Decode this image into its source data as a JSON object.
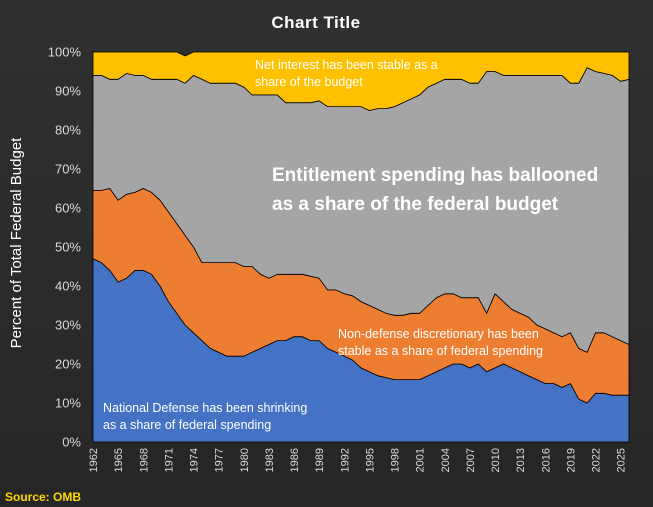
{
  "chart_data": {
    "type": "area",
    "stacked": true,
    "title": "Chart  Title",
    "ylabel": "Percent of Total Federal Budget",
    "xlabel": "",
    "ylim": [
      0,
      1
    ],
    "x_ticks": [
      "1962",
      "1965",
      "1968",
      "1971",
      "1974",
      "1977",
      "1980",
      "1983",
      "1986",
      "1989",
      "1992",
      "1995",
      "1998",
      "2001",
      "2004",
      "2007",
      "2010",
      "2013",
      "2016",
      "2019",
      "2022",
      "2025"
    ],
    "y_ticks": [
      "0%",
      "10%",
      "20%",
      "30%",
      "40%",
      "50%",
      "60%",
      "70%",
      "80%",
      "90%",
      "100%"
    ],
    "x": [
      1962,
      1963,
      1964,
      1965,
      1966,
      1967,
      1968,
      1969,
      1970,
      1971,
      1972,
      1973,
      1974,
      1975,
      1976,
      1977,
      1978,
      1979,
      1980,
      1981,
      1982,
      1983,
      1984,
      1985,
      1986,
      1987,
      1988,
      1989,
      1990,
      1991,
      1992,
      1993,
      1994,
      1995,
      1996,
      1997,
      1998,
      1999,
      2000,
      2001,
      2002,
      2003,
      2004,
      2005,
      2006,
      2007,
      2008,
      2009,
      2010,
      2011,
      2012,
      2013,
      2014,
      2015,
      2016,
      2017,
      2018,
      2019,
      2020,
      2021,
      2022,
      2023,
      2024,
      2025,
      2026
    ],
    "series": [
      {
        "id": "defense",
        "color": "#4472c4",
        "values": [
          0.47,
          0.46,
          0.44,
          0.41,
          0.42,
          0.44,
          0.44,
          0.43,
          0.4,
          0.36,
          0.33,
          0.3,
          0.28,
          0.26,
          0.24,
          0.23,
          0.22,
          0.22,
          0.22,
          0.23,
          0.24,
          0.25,
          0.26,
          0.26,
          0.27,
          0.27,
          0.26,
          0.26,
          0.24,
          0.23,
          0.22,
          0.21,
          0.19,
          0.18,
          0.17,
          0.165,
          0.16,
          0.16,
          0.16,
          0.16,
          0.17,
          0.18,
          0.19,
          0.2,
          0.2,
          0.19,
          0.2,
          0.18,
          0.19,
          0.2,
          0.19,
          0.18,
          0.17,
          0.16,
          0.15,
          0.15,
          0.14,
          0.15,
          0.11,
          0.1,
          0.125,
          0.125,
          0.12,
          0.12,
          0.12
        ]
      },
      {
        "id": "nondefense",
        "color": "#ed7d31",
        "values": [
          0.175,
          0.185,
          0.21,
          0.21,
          0.215,
          0.2,
          0.21,
          0.21,
          0.22,
          0.23,
          0.23,
          0.23,
          0.22,
          0.2,
          0.22,
          0.23,
          0.24,
          0.24,
          0.23,
          0.22,
          0.19,
          0.17,
          0.17,
          0.17,
          0.16,
          0.16,
          0.165,
          0.16,
          0.15,
          0.16,
          0.16,
          0.165,
          0.17,
          0.17,
          0.17,
          0.165,
          0.165,
          0.165,
          0.17,
          0.17,
          0.18,
          0.19,
          0.19,
          0.18,
          0.17,
          0.18,
          0.17,
          0.15,
          0.19,
          0.16,
          0.15,
          0.15,
          0.15,
          0.14,
          0.14,
          0.13,
          0.13,
          0.13,
          0.13,
          0.13,
          0.155,
          0.155,
          0.15,
          0.14,
          0.13
        ]
      },
      {
        "id": "entitlements",
        "color": "#a5a5a5",
        "values": [
          0.295,
          0.295,
          0.28,
          0.31,
          0.31,
          0.3,
          0.29,
          0.29,
          0.31,
          0.34,
          0.37,
          0.39,
          0.44,
          0.47,
          0.46,
          0.46,
          0.46,
          0.46,
          0.46,
          0.44,
          0.46,
          0.47,
          0.46,
          0.44,
          0.44,
          0.44,
          0.445,
          0.455,
          0.47,
          0.47,
          0.48,
          0.485,
          0.5,
          0.5,
          0.515,
          0.525,
          0.535,
          0.545,
          0.55,
          0.56,
          0.56,
          0.55,
          0.55,
          0.55,
          0.56,
          0.55,
          0.55,
          0.62,
          0.57,
          0.58,
          0.6,
          0.61,
          0.62,
          0.64,
          0.65,
          0.66,
          0.67,
          0.64,
          0.68,
          0.73,
          0.67,
          0.665,
          0.67,
          0.665,
          0.68
        ]
      },
      {
        "id": "interest",
        "color": "#ffc000",
        "values": [
          0.06,
          0.06,
          0.07,
          0.07,
          0.055,
          0.06,
          0.06,
          0.07,
          0.07,
          0.07,
          0.07,
          0.07,
          0.06,
          0.07,
          0.08,
          0.08,
          0.08,
          0.08,
          0.09,
          0.11,
          0.11,
          0.11,
          0.11,
          0.13,
          0.13,
          0.13,
          0.13,
          0.125,
          0.14,
          0.14,
          0.14,
          0.14,
          0.14,
          0.15,
          0.145,
          0.145,
          0.14,
          0.13,
          0.12,
          0.11,
          0.09,
          0.08,
          0.07,
          0.07,
          0.07,
          0.08,
          0.08,
          0.05,
          0.05,
          0.06,
          0.06,
          0.06,
          0.06,
          0.06,
          0.06,
          0.06,
          0.06,
          0.08,
          0.08,
          0.04,
          0.05,
          0.055,
          0.06,
          0.075,
          0.07
        ]
      }
    ],
    "annotations": {
      "interest": "Net interest has been stable as a\nshare of the budget",
      "entitlements": "Entitlement spending has ballooned\nas a share of the federal budget",
      "nondefense": "Non-defense discretionary has been\nstable as a share of federal spending",
      "defense": "National Defense has been shrinking\nas a share of federal spending"
    },
    "annotation_colors": {
      "interest": "#ffffff",
      "entitlements": "#ffffff",
      "nondefense": "#ffffff",
      "defense": "#ffffff"
    },
    "grid": false,
    "legend": "none"
  },
  "source": "Source: OMB"
}
